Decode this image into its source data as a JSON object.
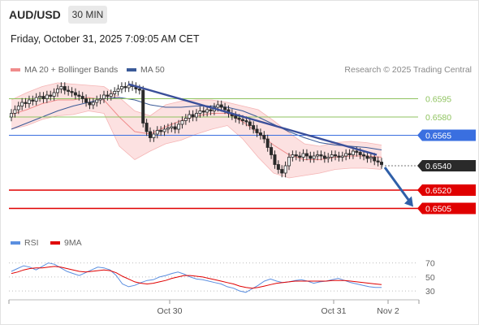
{
  "header": {
    "symbol": "AUD/USD",
    "timeframe": "30 MIN",
    "timestamp": "Friday, October 31, 2025 7:09:05 AM CET",
    "copyright": "Research © 2025 Trading Central"
  },
  "legend": [
    {
      "label": "MA 20 + Bollinger Bands",
      "color": "#f08c8c"
    },
    {
      "label": "MA 50",
      "color": "#3a5a98"
    }
  ],
  "rsi_legend": [
    {
      "label": "RSI",
      "color": "#5b8fe0"
    },
    {
      "label": "9MA",
      "color": "#e00000"
    }
  ],
  "colors": {
    "resistance": "#8fc35f",
    "pivot": "#3a6fe0",
    "support": "#e00000",
    "arrow": "#2f5fa8",
    "trendline": "#3a4f9a",
    "bollinger_fill": "#fcdcdc",
    "candle": "#2a2a2a"
  },
  "chart_data": {
    "type": "candlestick",
    "ylim": [
      0.6488,
      0.6612
    ],
    "x_ticks": [
      "Oct 30",
      "Oct 31",
      "Nov 2"
    ],
    "levels": [
      {
        "value": 0.6595,
        "label": "0.6595",
        "kind": "resistance"
      },
      {
        "value": 0.658,
        "label": "0.6580",
        "kind": "resistance"
      },
      {
        "value": 0.6565,
        "label": "0.6565",
        "kind": "pivot"
      },
      {
        "value": 0.654,
        "label": "0.6540",
        "kind": "current"
      },
      {
        "value": 0.652,
        "label": "0.6520",
        "kind": "support"
      },
      {
        "value": 0.6505,
        "label": "0.6505",
        "kind": "support"
      }
    ],
    "trendline": {
      "start": 0.6607,
      "end": 0.6549
    },
    "forecast_arrow": {
      "from": 0.654,
      "to": 0.6505
    },
    "closes": [
      0.6583,
      0.6586,
      0.6589,
      0.6592,
      0.6591,
      0.6594,
      0.6593,
      0.6596,
      0.6597,
      0.6595,
      0.6598,
      0.6597,
      0.66,
      0.6603,
      0.6605,
      0.6602,
      0.6601,
      0.66,
      0.6598,
      0.6597,
      0.6595,
      0.6592,
      0.659,
      0.6592,
      0.6594,
      0.6595,
      0.6598,
      0.6597,
      0.6599,
      0.6601,
      0.6603,
      0.6605,
      0.6604,
      0.6606,
      0.6605,
      0.6603,
      0.6602,
      0.6575,
      0.6568,
      0.6563,
      0.6566,
      0.6569,
      0.6568,
      0.657,
      0.6571,
      0.6572,
      0.657,
      0.6574,
      0.6577,
      0.6579,
      0.6582,
      0.658,
      0.6583,
      0.6585,
      0.6584,
      0.6586,
      0.6585,
      0.6588,
      0.659,
      0.6588,
      0.6586,
      0.6583,
      0.6581,
      0.6579,
      0.6578,
      0.6577,
      0.6576,
      0.6573,
      0.657,
      0.6567,
      0.6565,
      0.6562,
      0.6555,
      0.6549,
      0.6541,
      0.6537,
      0.6534,
      0.654,
      0.6547,
      0.6549,
      0.6548,
      0.6547,
      0.655,
      0.6548,
      0.6546,
      0.6548,
      0.6549,
      0.6548,
      0.6546,
      0.6547,
      0.6549,
      0.6548,
      0.6547,
      0.6548,
      0.655,
      0.6549,
      0.6552,
      0.6551,
      0.6549,
      0.6548,
      0.6546,
      0.6547,
      0.6544,
      0.6543,
      0.6541
    ],
    "bollinger": {
      "upper": [
        0.6594,
        0.66,
        0.6605,
        0.6608,
        0.6607,
        0.6606,
        0.6605,
        0.6596,
        0.6585,
        0.6581,
        0.659,
        0.6593,
        0.6594,
        0.6594,
        0.6592,
        0.6589,
        0.6586,
        0.6577,
        0.6567,
        0.6558,
        0.6556,
        0.6559,
        0.656,
        0.6559,
        0.6557
      ],
      "lower": [
        0.657,
        0.6573,
        0.6578,
        0.6581,
        0.6582,
        0.6585,
        0.6583,
        0.6556,
        0.6545,
        0.6552,
        0.6558,
        0.6561,
        0.6566,
        0.657,
        0.6573,
        0.6562,
        0.6547,
        0.6534,
        0.653,
        0.6532,
        0.6534,
        0.6537,
        0.6538,
        0.6538,
        0.6537
      ]
    },
    "ma20": [
      0.6582,
      0.6586,
      0.6591,
      0.6594,
      0.6594,
      0.6596,
      0.6594,
      0.658,
      0.6568,
      0.6566,
      0.6572,
      0.6577,
      0.6581,
      0.6583,
      0.6583,
      0.6576,
      0.6567,
      0.6557,
      0.6549,
      0.6545,
      0.6545,
      0.6547,
      0.6548,
      0.6548,
      0.6547
    ],
    "ma50": [
      0.657,
      0.6575,
      0.658,
      0.6585,
      0.6589,
      0.6592,
      0.6595,
      0.6596,
      0.6594,
      0.659,
      0.6588,
      0.6588,
      0.6589,
      0.6589,
      0.6588,
      0.6585,
      0.658,
      0.6574,
      0.6568,
      0.6563,
      0.6559,
      0.6557,
      0.6556,
      0.6555,
      0.6553
    ],
    "rsi": {
      "levels": [
        70,
        50,
        30
      ],
      "ylim": [
        22,
        80
      ],
      "rsi": [
        58,
        62,
        66,
        64,
        60,
        65,
        70,
        68,
        63,
        58,
        55,
        52,
        56,
        60,
        64,
        63,
        60,
        52,
        40,
        36,
        38,
        42,
        45,
        46,
        50,
        52,
        55,
        57,
        54,
        50,
        47,
        46,
        44,
        42,
        40,
        36,
        34,
        30,
        28,
        33,
        38,
        44,
        47,
        44,
        42,
        43,
        45,
        46,
        44,
        41,
        43,
        44,
        46,
        48,
        45,
        42,
        40,
        38,
        36,
        35,
        35
      ],
      "ma9": [
        55,
        57,
        60,
        62,
        63,
        63,
        64,
        65,
        64,
        62,
        60,
        58,
        57,
        58,
        59,
        60,
        59,
        56,
        51,
        47,
        43,
        41,
        40,
        41,
        43,
        45,
        48,
        50,
        52,
        52,
        51,
        50,
        48,
        46,
        44,
        42,
        40,
        37,
        35,
        34,
        35,
        37,
        39,
        41,
        42,
        43,
        44,
        44,
        44,
        44,
        44,
        44,
        45,
        45,
        45,
        44,
        43,
        42,
        41,
        40,
        39
      ]
    }
  }
}
